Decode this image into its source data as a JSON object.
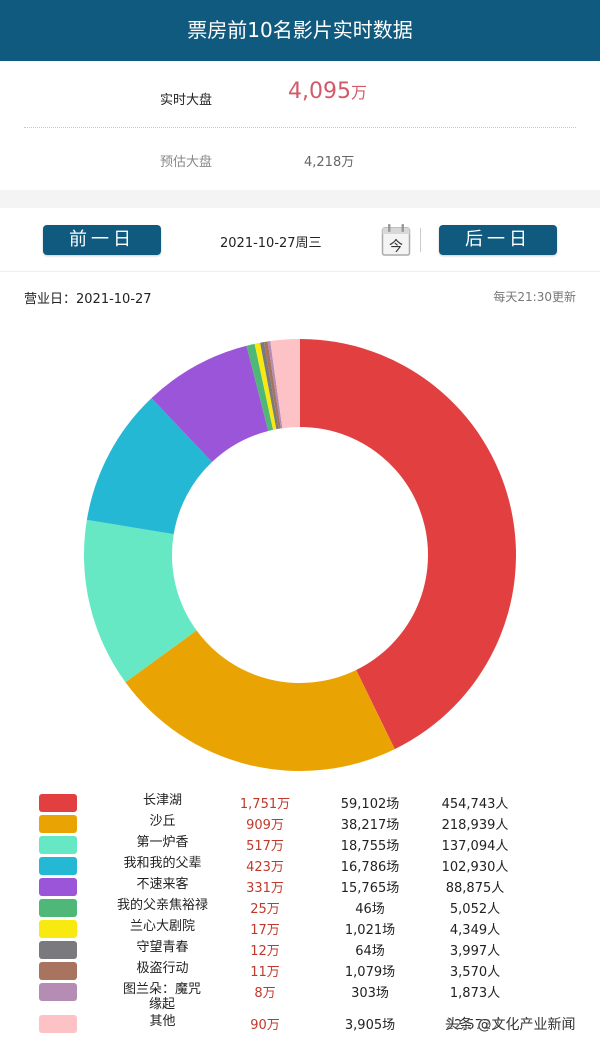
{
  "header": {
    "title": "票房前10名影片实时数据"
  },
  "summary": {
    "realtime_label": "实时大盘",
    "realtime_value": "4,095",
    "realtime_unit": "万",
    "estimate_label": "预估大盘",
    "estimate_value": "4,218万"
  },
  "datebar": {
    "prev_label": "前一日",
    "date_text": "2021-10-27周三",
    "today_icon_glyph": "今",
    "next_label": "后一日"
  },
  "bizbar": {
    "business_day": "营业日：2021-10-27",
    "update_note": "每天21:30更新"
  },
  "chart_data": {
    "type": "pie",
    "subtype": "donut",
    "title": "",
    "unit": "万",
    "categories": [
      "长津湖",
      "沙丘",
      "第一炉香",
      "我和我的父辈",
      "不速来客",
      "我的父亲焦裕禄",
      "兰心大剧院",
      "守望青春",
      "极盗行动",
      "图兰朵：魔咒缘起",
      "其他"
    ],
    "values": [
      1751,
      909,
      517,
      423,
      331,
      25,
      17,
      12,
      11,
      8,
      90
    ],
    "colors": [
      "#e24040",
      "#e9a404",
      "#66e8c4",
      "#25b8d4",
      "#9b55d8",
      "#4fb878",
      "#f8ea10",
      "#7a7a7e",
      "#a87460",
      "#b48cb4",
      "#fdc2c6"
    ],
    "start_angle_deg": 0,
    "direction": "clockwise",
    "legend_position": "bottom"
  },
  "legend": {
    "rows": [
      {
        "name": "长津湖",
        "box": "1,751万",
        "shows": "59,102场",
        "people": "454,743人"
      },
      {
        "name": "沙丘",
        "box": "909万",
        "shows": "38,217场",
        "people": "218,939人"
      },
      {
        "name": "第一炉香",
        "box": "517万",
        "shows": "18,755场",
        "people": "137,094人"
      },
      {
        "name": "我和我的父辈",
        "box": "423万",
        "shows": "16,786场",
        "people": "102,930人"
      },
      {
        "name": "不速来客",
        "box": "331万",
        "shows": "15,765场",
        "people": "88,875人"
      },
      {
        "name": "我的父亲焦裕禄",
        "box": "25万",
        "shows": "46场",
        "people": "5,052人"
      },
      {
        "name": "兰心大剧院",
        "box": "17万",
        "shows": "1,021场",
        "people": "4,349人"
      },
      {
        "name": "守望青春",
        "box": "12万",
        "shows": "64场",
        "people": "3,997人"
      },
      {
        "name": "极盗行动",
        "box": "11万",
        "shows": "1,079场",
        "people": "3,570人"
      },
      {
        "name": "图兰朵：魔咒缘起",
        "box": "8万",
        "shows": "303场",
        "people": "1,873人"
      },
      {
        "name": "其他",
        "box": "90万",
        "shows": "3,905场",
        "people": "22,572人"
      }
    ]
  },
  "watermark": "头条 @文化产业新闻"
}
